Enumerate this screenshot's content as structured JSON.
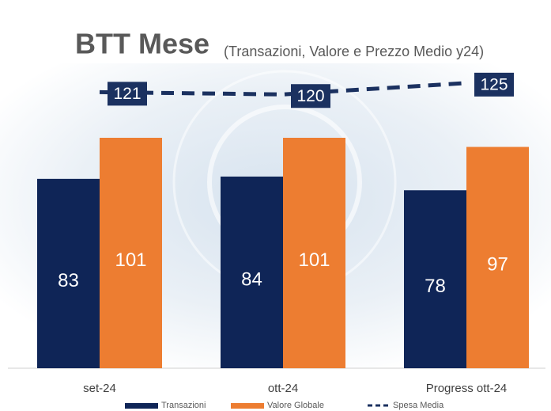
{
  "chart_data": {
    "type": "bar",
    "title": "BTT Mese",
    "subtitle": "(Transazioni, Valore e Prezzo Medio y24)",
    "categories": [
      "set-24",
      "ott-24",
      "Progress ott-24"
    ],
    "series": [
      {
        "name": "Transazioni",
        "color": "#0f2557",
        "values": [
          83,
          84,
          78
        ]
      },
      {
        "name": "Valore Globale",
        "color": "#ed7d31",
        "values": [
          101,
          101,
          97
        ]
      },
      {
        "name": "Spesa Media",
        "type": "line",
        "color": "#1b3160",
        "values": [
          121,
          120,
          125
        ]
      }
    ],
    "ylim": [
      0,
      160
    ]
  }
}
